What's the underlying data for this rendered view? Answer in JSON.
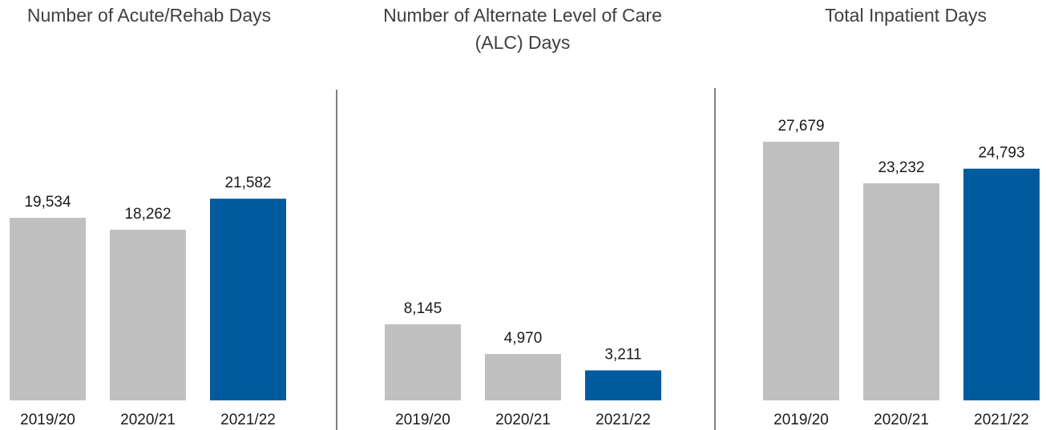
{
  "chart_data": [
    {
      "type": "bar",
      "title": "Number of Acute/Rehab Days",
      "categories": [
        "2019/20",
        "2020/21",
        "2021/22"
      ],
      "values": [
        19534,
        18262,
        21582
      ],
      "value_labels": [
        "19,534",
        "18,262",
        "21,582"
      ],
      "colors": [
        "#c0c0c0",
        "#c0c0c0",
        "#005a9e"
      ]
    },
    {
      "type": "bar",
      "title": "Number of Alternate Level of Care",
      "title_line2": "(ALC) Days",
      "categories": [
        "2019/20",
        "2020/21",
        "2021/22"
      ],
      "values": [
        8145,
        4970,
        3211
      ],
      "value_labels": [
        "8,145",
        "4,970",
        "3,211"
      ],
      "colors": [
        "#c0c0c0",
        "#c0c0c0",
        "#005a9e"
      ]
    },
    {
      "type": "bar",
      "title": "Total Inpatient Days",
      "categories": [
        "2019/20",
        "2020/21",
        "2021/22"
      ],
      "values": [
        27679,
        23232,
        24793
      ],
      "value_labels": [
        "27,679",
        "23,232",
        "24,793"
      ],
      "colors": [
        "#c0c0c0",
        "#c0c0c0",
        "#005a9e"
      ]
    }
  ],
  "colors": {
    "prior_year": "#c0c0c0",
    "current_year": "#005a9e",
    "divider": "#7f7f7f"
  }
}
